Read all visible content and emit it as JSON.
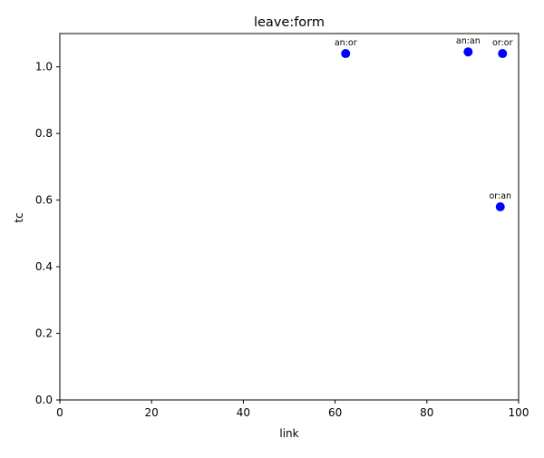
{
  "chart_data": {
    "type": "scatter",
    "title": "leave:form",
    "xlabel": "link",
    "ylabel": "tc",
    "xlim": [
      0,
      100
    ],
    "ylim": [
      0,
      1.1
    ],
    "xticks": [
      0,
      20,
      40,
      60,
      80,
      100
    ],
    "xtick_labels": [
      "0",
      "20",
      "40",
      "60",
      "80",
      "100"
    ],
    "yticks": [
      0.0,
      0.2,
      0.4,
      0.6,
      0.8,
      1.0
    ],
    "ytick_labels": [
      "0.0",
      "0.2",
      "0.4",
      "0.6",
      "0.8",
      "1.0"
    ],
    "grid": false,
    "marker_color": "#0000ff",
    "points": [
      {
        "label": "an:or",
        "x": 62.3,
        "y": 1.04
      },
      {
        "label": "an:an",
        "x": 89.0,
        "y": 1.045
      },
      {
        "label": "or:or",
        "x": 96.5,
        "y": 1.04
      },
      {
        "label": "or:an",
        "x": 96.0,
        "y": 0.58
      }
    ]
  }
}
